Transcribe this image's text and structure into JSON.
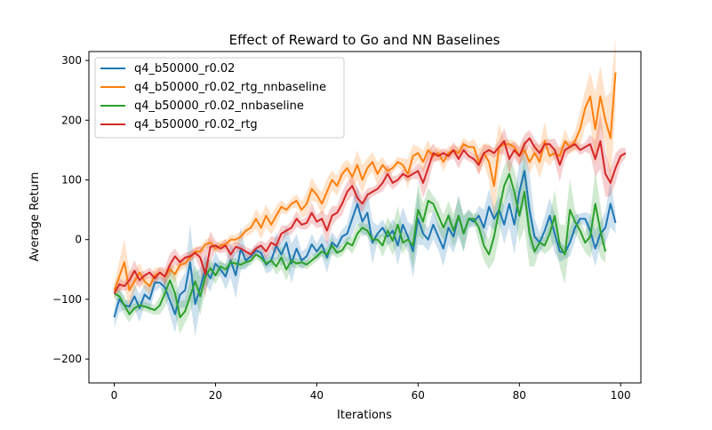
{
  "chart_data": {
    "type": "line",
    "title": "Effect of Reward to Go and NN Baselines",
    "xlabel": "Iterations",
    "ylabel": "Average Return",
    "xlim": [
      -5,
      104
    ],
    "ylim": [
      -240,
      315
    ],
    "xticks": [
      0,
      20,
      40,
      60,
      80,
      100
    ],
    "yticks": [
      -200,
      -100,
      0,
      100,
      200,
      300
    ],
    "grid": false,
    "legend_position": "top-left",
    "series": [
      {
        "name": "q4_b50000_r0.02",
        "color": "#1f77b4",
        "values": [
          -130,
          -100,
          -110,
          -112,
          -95,
          -115,
          -92,
          -100,
          -72,
          -72,
          -80,
          -102,
          -125,
          -92,
          -85,
          -38,
          -108,
          -80,
          -50,
          -65,
          -40,
          -50,
          -62,
          -35,
          -60,
          -15,
          -35,
          -28,
          -18,
          -22,
          -42,
          -35,
          -10,
          -25,
          -5,
          -40,
          -15,
          -35,
          -28,
          -8,
          -20,
          -8,
          -30,
          -5,
          -12,
          5,
          10,
          35,
          60,
          30,
          45,
          -5,
          10,
          20,
          5,
          15,
          -10,
          25,
          5,
          -20,
          35,
          10,
          0,
          25,
          5,
          -15,
          20,
          5,
          40,
          10,
          35,
          30,
          40,
          20,
          55,
          35,
          50,
          25,
          60,
          25,
          80,
          115,
          50,
          5,
          -5,
          15,
          40,
          10,
          -20,
          -22,
          -5,
          20,
          35,
          35,
          15,
          -15,
          10,
          20,
          60,
          28
        ]
      },
      {
        "name": "q4_b50000_r0.02_rtg_nnbaseline",
        "color": "#ff7f0e",
        "values": [
          -85,
          -62,
          -38,
          -85,
          -70,
          -55,
          -70,
          -78,
          -60,
          -55,
          -62,
          -50,
          -58,
          -42,
          -40,
          -30,
          -20,
          -20,
          -8,
          -5,
          -15,
          -10,
          -8,
          0,
          0,
          5,
          15,
          20,
          35,
          20,
          40,
          25,
          40,
          55,
          50,
          60,
          65,
          50,
          60,
          85,
          75,
          60,
          80,
          100,
          90,
          110,
          120,
          105,
          125,
          100,
          120,
          130,
          110,
          125,
          115,
          120,
          130,
          125,
          110,
          140,
          145,
          130,
          150,
          140,
          145,
          130,
          145,
          150,
          145,
          160,
          155,
          155,
          130,
          145,
          130,
          90,
          155,
          160,
          160,
          155,
          140,
          150,
          130,
          145,
          130,
          165,
          140,
          145,
          140,
          165,
          155,
          165,
          185,
          220,
          240,
          185,
          240,
          200,
          170,
          280
        ]
      },
      {
        "name": "q4_b50000_r0.02_nnbaseline",
        "color": "#2ca02c",
        "values": [
          -90,
          -95,
          -110,
          -125,
          -115,
          -110,
          -112,
          -115,
          -118,
          -110,
          -90,
          -68,
          -90,
          -130,
          -120,
          -95,
          -70,
          -95,
          -62,
          -48,
          -60,
          -45,
          -50,
          -38,
          -40,
          -42,
          -38,
          -35,
          -25,
          -30,
          -40,
          -35,
          -45,
          -30,
          -50,
          -35,
          -40,
          -38,
          -42,
          -35,
          -28,
          -20,
          -25,
          -10,
          -22,
          -18,
          -5,
          -10,
          10,
          20,
          15,
          0,
          0,
          -10,
          15,
          -2,
          25,
          -5,
          0,
          -10,
          50,
          30,
          65,
          60,
          40,
          20,
          40,
          15,
          40,
          10,
          35,
          35,
          20,
          -10,
          -25,
          5,
          50,
          90,
          110,
          80,
          40,
          80,
          10,
          -20,
          -5,
          -10,
          10,
          40,
          -10,
          -25,
          50,
          30,
          15,
          -5,
          5,
          60,
          15,
          -20
        ]
      },
      {
        "name": "q4_b50000_r0.02_rtg",
        "color": "#d62728",
        "values": [
          -90,
          -75,
          -78,
          -68,
          -52,
          -68,
          -60,
          -55,
          -65,
          -55,
          -62,
          -42,
          -28,
          -38,
          -30,
          -28,
          -22,
          -30,
          -58,
          -12,
          -10,
          -15,
          -10,
          -25,
          -12,
          -15,
          -20,
          -25,
          -15,
          -10,
          -20,
          -5,
          -10,
          10,
          15,
          20,
          35,
          25,
          28,
          45,
          30,
          35,
          15,
          40,
          45,
          60,
          80,
          90,
          70,
          60,
          75,
          80,
          85,
          95,
          110,
          95,
          100,
          110,
          105,
          110,
          115,
          95,
          120,
          145,
          140,
          145,
          140,
          150,
          135,
          150,
          140,
          135,
          125,
          145,
          150,
          145,
          155,
          165,
          135,
          150,
          140,
          160,
          170,
          155,
          145,
          160,
          160,
          150,
          125,
          150,
          155,
          160,
          150,
          155,
          160,
          135,
          165,
          110,
          95,
          120,
          140,
          145
        ]
      }
    ]
  }
}
